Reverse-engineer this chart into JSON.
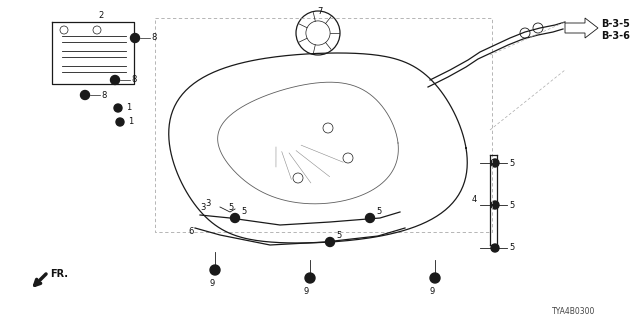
{
  "bg_color": "#ffffff",
  "line_color": "#1a1a1a",
  "part_number": "TYA4B0300",
  "fig_w": 6.4,
  "fig_h": 3.2,
  "dpi": 100
}
